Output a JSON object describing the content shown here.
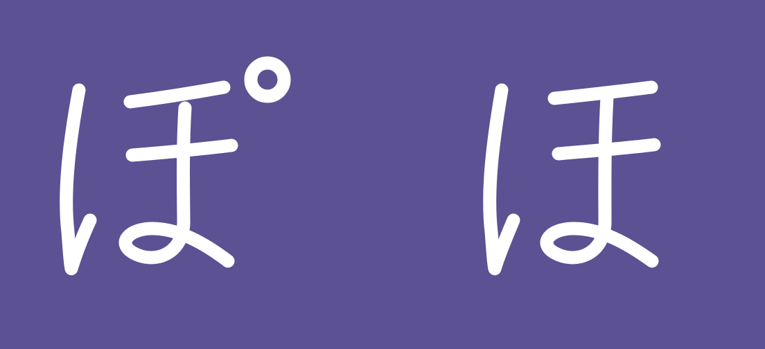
{
  "colors": {
    "background": "#5b5193",
    "ink": "#ffffff"
  },
  "characters": [
    {
      "glyph": "ぽ"
    },
    {
      "glyph": "ほ"
    }
  ]
}
